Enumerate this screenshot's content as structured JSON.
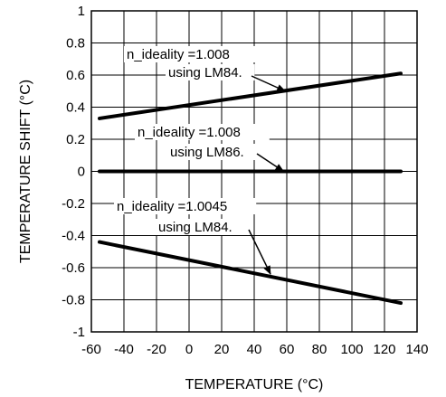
{
  "chart_data": {
    "type": "line",
    "title": "",
    "xlabel": "TEMPERATURE (°C)",
    "ylabel": "TEMPERATURE SHIFT (°C)",
    "xlim": [
      -60,
      140
    ],
    "ylim": [
      -1,
      1
    ],
    "xticks": [
      "-60",
      "-40",
      "-20",
      "0",
      "20",
      "40",
      "60",
      "80",
      "100",
      "120",
      "140"
    ],
    "yticks": [
      "1",
      "0.8",
      "0.6",
      "0.4",
      "0.2",
      "0",
      "-0.2",
      "-0.4",
      "-0.6",
      "-0.8",
      "-1"
    ],
    "grid": true,
    "series": [
      {
        "x": [
          -55,
          130
        ],
        "y": [
          0.33,
          0.61
        ]
      },
      {
        "x": [
          -55,
          130
        ],
        "y": [
          0.0,
          0.0
        ]
      },
      {
        "x": [
          -55,
          130
        ],
        "y": [
          -0.44,
          -0.82
        ]
      }
    ],
    "annotations": [
      {
        "line1": "n_ideality =1.008",
        "line2": "using LM84.",
        "arrow_to": [
          59,
          0.5
        ]
      },
      {
        "line1": "n_ideality =1.008",
        "line2": "using LM86.",
        "arrow_to": [
          58,
          0.0
        ]
      },
      {
        "line1": "n_ideality =1.0045",
        "line2": "using LM84.",
        "arrow_to": [
          50,
          -0.64
        ]
      }
    ]
  }
}
